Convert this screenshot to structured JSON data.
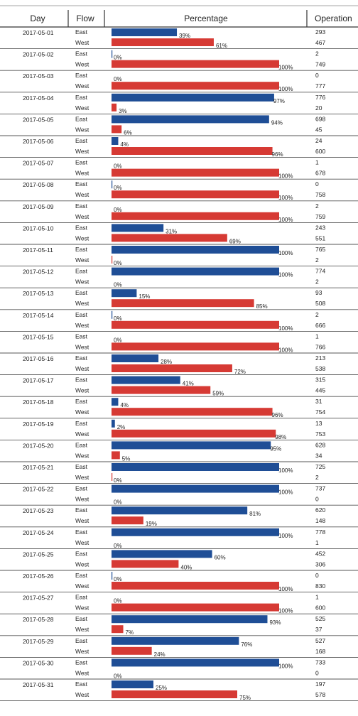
{
  "chart_data": {
    "type": "table",
    "columns": [
      "Day",
      "Flow",
      "Percentage",
      "Operation"
    ],
    "percentage_range": [
      0,
      100
    ],
    "percent_suffix": "%",
    "colors": {
      "East": "#1f4e96",
      "West": "#d63a34",
      "grid": "#333333",
      "text": "#222222"
    },
    "rows": [
      {
        "day": "2017-05-01",
        "east_pct": 39,
        "west_pct": 61,
        "east_ops": 293,
        "west_ops": 467
      },
      {
        "day": "2017-05-02",
        "east_pct": 0,
        "west_pct": 100,
        "east_ops": 2,
        "west_ops": 749
      },
      {
        "day": "2017-05-03",
        "east_pct": 0,
        "west_pct": 100,
        "east_ops": 0,
        "west_ops": 777
      },
      {
        "day": "2017-05-04",
        "east_pct": 97,
        "west_pct": 3,
        "east_ops": 776,
        "west_ops": 20
      },
      {
        "day": "2017-05-05",
        "east_pct": 94,
        "west_pct": 6,
        "east_ops": 698,
        "west_ops": 45
      },
      {
        "day": "2017-05-06",
        "east_pct": 4,
        "west_pct": 96,
        "east_ops": 24,
        "west_ops": 600
      },
      {
        "day": "2017-05-07",
        "east_pct": 0,
        "west_pct": 100,
        "east_ops": 1,
        "west_ops": 678
      },
      {
        "day": "2017-05-08",
        "east_pct": 0,
        "west_pct": 100,
        "east_ops": 0,
        "west_ops": 758
      },
      {
        "day": "2017-05-09",
        "east_pct": 0,
        "west_pct": 100,
        "east_ops": 2,
        "west_ops": 759
      },
      {
        "day": "2017-05-10",
        "east_pct": 31,
        "west_pct": 69,
        "east_ops": 243,
        "west_ops": 551
      },
      {
        "day": "2017-05-11",
        "east_pct": 100,
        "west_pct": 0,
        "east_ops": 765,
        "west_ops": 2
      },
      {
        "day": "2017-05-12",
        "east_pct": 100,
        "west_pct": 0,
        "east_ops": 774,
        "west_ops": 2
      },
      {
        "day": "2017-05-13",
        "east_pct": 15,
        "west_pct": 85,
        "east_ops": 93,
        "west_ops": 508
      },
      {
        "day": "2017-05-14",
        "east_pct": 0,
        "west_pct": 100,
        "east_ops": 2,
        "west_ops": 666
      },
      {
        "day": "2017-05-15",
        "east_pct": 0,
        "west_pct": 100,
        "east_ops": 1,
        "west_ops": 766
      },
      {
        "day": "2017-05-16",
        "east_pct": 28,
        "west_pct": 72,
        "east_ops": 213,
        "west_ops": 538
      },
      {
        "day": "2017-05-17",
        "east_pct": 41,
        "west_pct": 59,
        "east_ops": 315,
        "west_ops": 445
      },
      {
        "day": "2017-05-18",
        "east_pct": 4,
        "west_pct": 96,
        "east_ops": 31,
        "west_ops": 754
      },
      {
        "day": "2017-05-19",
        "east_pct": 2,
        "west_pct": 98,
        "east_ops": 13,
        "west_ops": 753
      },
      {
        "day": "2017-05-20",
        "east_pct": 95,
        "west_pct": 5,
        "east_ops": 628,
        "west_ops": 34
      },
      {
        "day": "2017-05-21",
        "east_pct": 100,
        "west_pct": 0,
        "east_ops": 725,
        "west_ops": 2
      },
      {
        "day": "2017-05-22",
        "east_pct": 100,
        "west_pct": 0,
        "east_ops": 737,
        "west_ops": 0
      },
      {
        "day": "2017-05-23",
        "east_pct": 81,
        "west_pct": 19,
        "east_ops": 620,
        "west_ops": 148
      },
      {
        "day": "2017-05-24",
        "east_pct": 100,
        "west_pct": 0,
        "east_ops": 778,
        "west_ops": 1
      },
      {
        "day": "2017-05-25",
        "east_pct": 60,
        "west_pct": 40,
        "east_ops": 452,
        "west_ops": 306
      },
      {
        "day": "2017-05-26",
        "east_pct": 0,
        "west_pct": 100,
        "east_ops": 0,
        "west_ops": 830
      },
      {
        "day": "2017-05-27",
        "east_pct": 0,
        "west_pct": 100,
        "east_ops": 1,
        "west_ops": 600
      },
      {
        "day": "2017-05-28",
        "east_pct": 93,
        "west_pct": 7,
        "east_ops": 525,
        "west_ops": 37
      },
      {
        "day": "2017-05-29",
        "east_pct": 76,
        "west_pct": 24,
        "east_ops": 527,
        "west_ops": 168
      },
      {
        "day": "2017-05-30",
        "east_pct": 100,
        "west_pct": 0,
        "east_ops": 733,
        "west_ops": 0
      },
      {
        "day": "2017-05-31",
        "east_pct": 25,
        "west_pct": 75,
        "east_ops": 197,
        "west_ops": 578
      }
    ]
  }
}
